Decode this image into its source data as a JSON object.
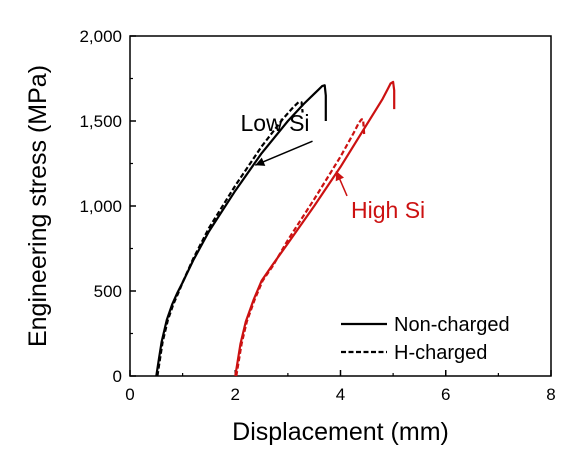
{
  "chart_data": {
    "type": "line",
    "title": "",
    "xlabel": "Displacement (mm)",
    "ylabel": "Engineering stress (MPa)",
    "xlim": [
      0,
      8
    ],
    "ylim": [
      0,
      2000
    ],
    "x_ticks": [
      0,
      2,
      4,
      6,
      8
    ],
    "y_ticks": [
      0,
      500,
      1000,
      1500,
      2000
    ],
    "x_tick_labels": [
      "0",
      "2",
      "4",
      "6",
      "8"
    ],
    "y_tick_labels": [
      "0",
      "500",
      "1,000",
      "1,500",
      "2,000"
    ],
    "grid": false,
    "legend_position": "bottom-right",
    "legend": [
      {
        "label": "Non-charged",
        "style": "solid"
      },
      {
        "label": "H-charged",
        "style": "dashed"
      }
    ],
    "annotations": [
      {
        "text": "Low Si",
        "color": "#000000",
        "x": 2.1,
        "y": 1440,
        "arrow_to": [
          2.38,
          1240
        ]
      },
      {
        "text": "High Si",
        "color": "#cc1111",
        "x": 4.2,
        "y": 930,
        "arrow_to": [
          3.92,
          1205
        ]
      }
    ],
    "series": [
      {
        "group": "Low Si",
        "condition": "Non-charged",
        "color": "#000000",
        "dash": "solid",
        "x": [
          0.5,
          0.55,
          0.6,
          0.7,
          0.8,
          0.9,
          1.0,
          1.2,
          1.5,
          2.0,
          2.5,
          3.0,
          3.3,
          3.5,
          3.6,
          3.65,
          3.7,
          3.72,
          3.72
        ],
        "y": [
          0,
          100,
          200,
          330,
          420,
          490,
          550,
          680,
          850,
          1090,
          1310,
          1500,
          1600,
          1660,
          1690,
          1705,
          1710,
          1650,
          1500
        ]
      },
      {
        "group": "Low Si",
        "condition": "H-charged",
        "color": "#000000",
        "dash": "dashed",
        "x": [
          0.52,
          0.57,
          0.62,
          0.72,
          0.82,
          0.92,
          1.0,
          1.2,
          1.5,
          2.0,
          2.5,
          2.9,
          3.1,
          3.2,
          3.26,
          3.28
        ],
        "y": [
          0,
          100,
          200,
          330,
          420,
          490,
          550,
          690,
          870,
          1120,
          1350,
          1510,
          1580,
          1610,
          1610,
          1550
        ]
      },
      {
        "group": "High Si",
        "condition": "Non-charged",
        "color": "#cc1111",
        "dash": "solid",
        "x": [
          2.0,
          2.1,
          2.2,
          2.35,
          2.5,
          2.7,
          3.0,
          3.5,
          4.0,
          4.5,
          4.8,
          4.9,
          4.95,
          5.0,
          5.02,
          5.02
        ],
        "y": [
          0,
          190,
          320,
          450,
          560,
          650,
          780,
          1000,
          1230,
          1480,
          1630,
          1690,
          1720,
          1730,
          1680,
          1570
        ]
      },
      {
        "group": "High Si",
        "condition": "H-charged",
        "color": "#cc1111",
        "dash": "dashed",
        "x": [
          2.02,
          2.12,
          2.22,
          2.37,
          2.52,
          2.72,
          3.0,
          3.5,
          4.0,
          4.25,
          4.35,
          4.4,
          4.43,
          4.45
        ],
        "y": [
          0,
          190,
          320,
          450,
          560,
          650,
          800,
          1040,
          1290,
          1430,
          1490,
          1510,
          1510,
          1420
        ]
      }
    ]
  }
}
